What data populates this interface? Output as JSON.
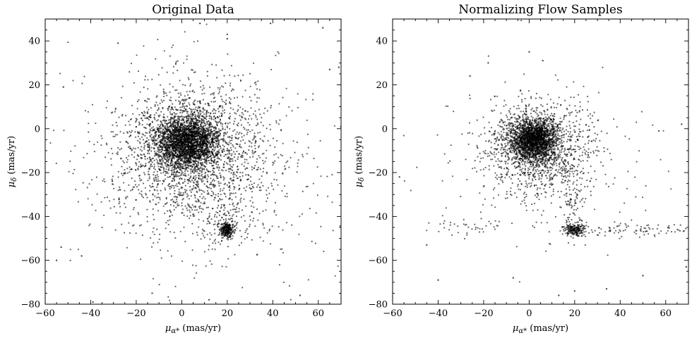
{
  "chart_data": [
    {
      "type": "scatter",
      "title": "Original Data",
      "xlabel_main": "μ",
      "xlabel_sub": "α*",
      "xlabel_units": " (mas/yr)",
      "ylabel_main": "μ",
      "ylabel_sub": "δ",
      "ylabel_units": " (mas/yr)",
      "xlim": [
        -60,
        70
      ],
      "ylim": [
        -80,
        50
      ],
      "x_ticks": [
        -60,
        -40,
        -20,
        0,
        20,
        40,
        60
      ],
      "y_ticks": [
        -80,
        -60,
        -40,
        -20,
        0,
        20,
        40
      ],
      "point_color": "#000000",
      "clusters": [
        {
          "center": [
            2,
            -6
          ],
          "spread": [
            7,
            6
          ],
          "count": 2600
        },
        {
          "center": [
            5,
            -12
          ],
          "spread": [
            18,
            16
          ],
          "count": 1800
        },
        {
          "center": [
            10,
            -18
          ],
          "spread": [
            30,
            28
          ],
          "count": 450
        },
        {
          "center": [
            20,
            -46
          ],
          "spread": [
            1.6,
            1.8
          ],
          "count": 260
        },
        {
          "center": [
            18,
            -40
          ],
          "spread": [
            5,
            8
          ],
          "count": 80
        }
      ],
      "scattered_points": [
        {
          "x": -28,
          "y": 39
        },
        {
          "x": -52,
          "y": 19
        },
        {
          "x": 20,
          "y": 43
        },
        {
          "x": 39,
          "y": 48
        },
        {
          "x": 62,
          "y": 46
        },
        {
          "x": 8,
          "y": 48
        },
        {
          "x": 20,
          "y": 41
        },
        {
          "x": 69,
          "y": 28
        },
        {
          "x": 65,
          "y": 27
        },
        {
          "x": -55,
          "y": -60
        },
        {
          "x": -53,
          "y": -54
        },
        {
          "x": -44,
          "y": -58
        },
        {
          "x": -13,
          "y": -75
        },
        {
          "x": 12,
          "y": -78
        },
        {
          "x": 52,
          "y": -76
        },
        {
          "x": -39,
          "y": -79
        }
      ]
    },
    {
      "type": "scatter",
      "title": "Normalizing Flow Samples",
      "xlabel_main": "μ",
      "xlabel_sub": "α*",
      "xlabel_units": " (mas/yr)",
      "ylabel_main": "μ",
      "ylabel_sub": "δ",
      "ylabel_units": " (mas/yr)",
      "xlim": [
        -60,
        70
      ],
      "ylim": [
        -80,
        50
      ],
      "x_ticks": [
        -60,
        -40,
        -20,
        0,
        20,
        40,
        60
      ],
      "y_ticks": [
        -80,
        -60,
        -40,
        -20,
        0,
        20,
        40
      ],
      "point_color": "#000000",
      "clusters": [
        {
          "center": [
            2,
            -5
          ],
          "spread": [
            5,
            4.5
          ],
          "count": 1800
        },
        {
          "center": [
            3,
            -9
          ],
          "spread": [
            11,
            10
          ],
          "count": 1200
        },
        {
          "center": [
            5,
            -14
          ],
          "spread": [
            22,
            18
          ],
          "count": 300
        },
        {
          "center": [
            20,
            -46
          ],
          "spread": [
            2.5,
            1.5
          ],
          "count": 200
        },
        {
          "center": [
            19,
            -36
          ],
          "spread": [
            2,
            8
          ],
          "count": 80
        },
        {
          "center": [
            45,
            -46
          ],
          "spread": [
            14,
            1.8
          ],
          "count": 90
        },
        {
          "center": [
            -28,
            -45
          ],
          "spread": [
            8,
            2
          ],
          "count": 40
        }
      ],
      "scattered_points": [
        {
          "x": 0,
          "y": 35
        },
        {
          "x": 6,
          "y": 31
        },
        {
          "x": -18,
          "y": 30
        },
        {
          "x": -26,
          "y": 24
        },
        {
          "x": 67,
          "y": 2
        },
        {
          "x": 57,
          "y": -1
        },
        {
          "x": -57,
          "y": -22
        },
        {
          "x": -40,
          "y": -69
        },
        {
          "x": 13,
          "y": -76
        },
        {
          "x": 34,
          "y": -73
        },
        {
          "x": -7,
          "y": -68
        },
        {
          "x": 69,
          "y": -63
        },
        {
          "x": 50,
          "y": -67
        },
        {
          "x": -45,
          "y": -53
        },
        {
          "x": 20,
          "y": -74
        }
      ]
    }
  ]
}
